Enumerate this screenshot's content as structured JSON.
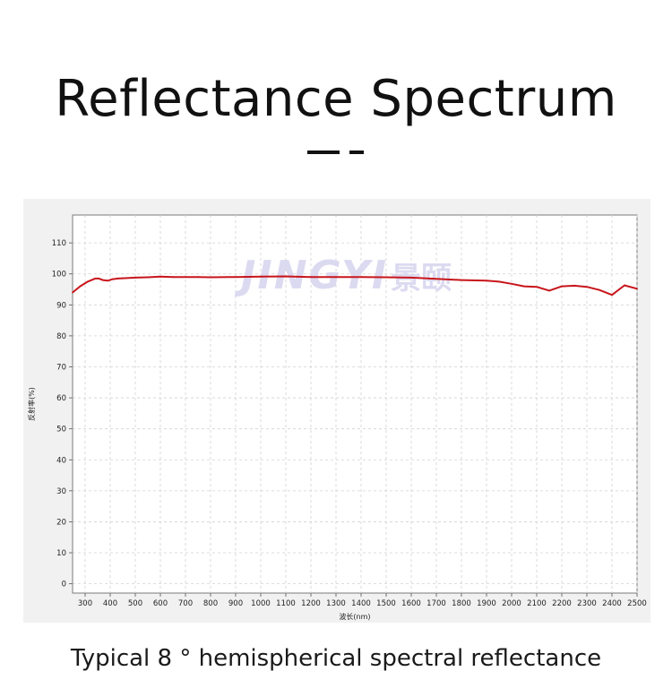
{
  "header": {
    "title": "Reflectance Spectrum"
  },
  "caption": "Typical 8 ° hemispherical spectral reflectance",
  "watermark": {
    "text": "JINGYI",
    "cn_text": "景颐"
  },
  "colors": {
    "series": "#c8151b",
    "watermark": "#d6d3ee"
  },
  "chart_data": {
    "type": "line",
    "title": "",
    "xlabel": "波长(nm)",
    "ylabel": "反射率(%)",
    "xlim": [
      250,
      2500
    ],
    "ylim": [
      -3,
      119
    ],
    "xticks": [
      300,
      400,
      500,
      600,
      700,
      800,
      900,
      1000,
      1100,
      1200,
      1300,
      1400,
      1500,
      1600,
      1700,
      1800,
      1900,
      2000,
      2100,
      2200,
      2300,
      2400,
      2500
    ],
    "yticks": [
      0,
      10,
      20,
      30,
      40,
      50,
      60,
      70,
      80,
      90,
      100,
      110
    ],
    "grid": true,
    "series": [
      {
        "x": [
          250,
          280,
          310,
          340,
          355,
          370,
          390,
          410,
          430,
          450,
          500,
          550,
          600,
          650,
          700,
          750,
          800,
          900,
          1000,
          1100,
          1200,
          1300,
          1400,
          1500,
          1600,
          1700,
          1800,
          1900,
          1950,
          2000,
          2050,
          2100,
          2150,
          2200,
          2250,
          2300,
          2350,
          2400,
          2450,
          2500
        ],
        "y": [
          94,
          96,
          97.5,
          98.5,
          98.5,
          98,
          97.8,
          98.3,
          98.5,
          98.6,
          98.8,
          98.9,
          99.1,
          99,
          99,
          99,
          98.9,
          99,
          99.1,
          99.2,
          99,
          99,
          99,
          98.9,
          98.8,
          98.4,
          98,
          97.8,
          97.5,
          96.8,
          96,
          95.8,
          94.6,
          96,
          96.2,
          95.8,
          94.8,
          93.2,
          96.3,
          95.2
        ]
      }
    ]
  }
}
